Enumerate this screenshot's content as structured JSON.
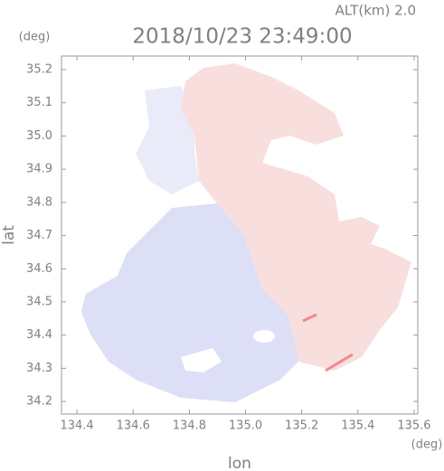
{
  "chart_data": {
    "type": "radar-map",
    "title": "2018/10/23 23:49:00",
    "subtitle": "ALT(km) 2.0",
    "x_label": "lon",
    "y_label": "lat",
    "x_unit": "(deg)",
    "y_unit": "(deg)",
    "xlim": [
      134.345,
      135.613
    ],
    "ylim": [
      34.162,
      35.241
    ],
    "xticks": [
      134.4,
      134.6,
      134.8,
      {
        "value": 135.0,
        "label": "135.0"
      },
      135.2,
      135.4,
      135.6
    ],
    "yticks": [
      34.2,
      34.3,
      34.4,
      34.5,
      34.6,
      34.7,
      34.8,
      34.9,
      {
        "value": 35.0,
        "label": "35.0"
      },
      35.1,
      35.2
    ]
  }
}
